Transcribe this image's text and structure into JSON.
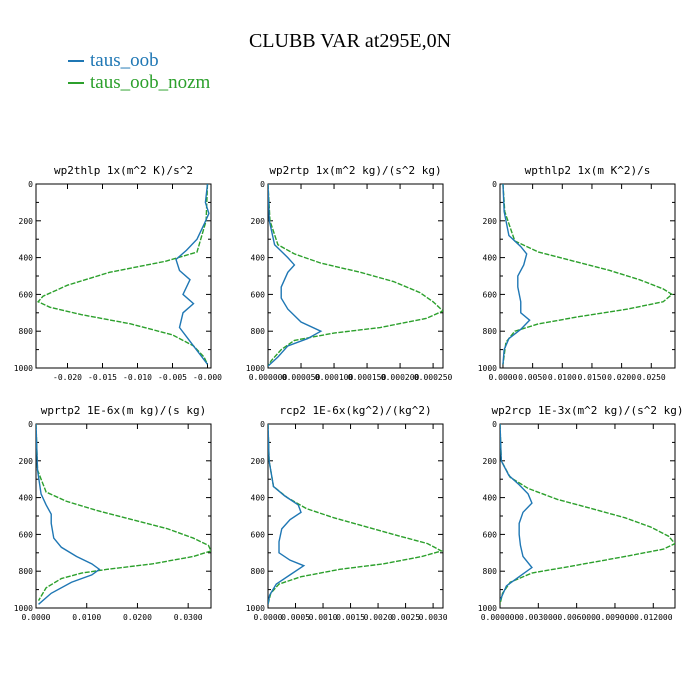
{
  "title": "CLUBB VAR at295E,0N",
  "legend": [
    {
      "label": "taus_oob",
      "color": "#1f77b4"
    },
    {
      "label": "taus_oob_nozm",
      "color": "#2ca02c"
    }
  ],
  "y_ticks": [
    "0",
    "200",
    "400",
    "600",
    "800",
    "1000"
  ],
  "chart_data": [
    {
      "type": "line",
      "title": "wp2thlp  1x(m^2 K)/s^2",
      "xlim": [
        -0.0245,
        0.0005
      ],
      "ylim": [
        1000,
        0
      ],
      "x_tick_values": [
        -0.02,
        -0.015,
        -0.01,
        -0.005,
        0.0
      ],
      "x_tick_labels": [
        "-0.020",
        "-0.015",
        "-0.010",
        "-0.005",
        "-0.000"
      ],
      "series": [
        {
          "name": "taus_oob",
          "color": "#1f77b4",
          "points": [
            [
              0,
              0
            ],
            [
              -0.0003,
              100
            ],
            [
              0.0002,
              160
            ],
            [
              -0.0005,
              220
            ],
            [
              -0.0015,
              300
            ],
            [
              -0.003,
              360
            ],
            [
              -0.0045,
              410
            ],
            [
              -0.004,
              470
            ],
            [
              -0.0025,
              520
            ],
            [
              -0.0035,
              600
            ],
            [
              -0.002,
              650
            ],
            [
              -0.0035,
              700
            ],
            [
              -0.004,
              780
            ],
            [
              -0.003,
              830
            ],
            [
              -0.002,
              880
            ],
            [
              -0.001,
              930
            ],
            [
              0,
              980
            ]
          ]
        },
        {
          "name": "taus_oob_nozm",
          "color": "#2ca02c",
          "points": [
            [
              0,
              0
            ],
            [
              -0.0002,
              200
            ],
            [
              -0.0015,
              370
            ],
            [
              -0.006,
              420
            ],
            [
              -0.014,
              480
            ],
            [
              -0.02,
              550
            ],
            [
              -0.0235,
              610
            ],
            [
              -0.0242,
              640
            ],
            [
              -0.0225,
              670
            ],
            [
              -0.018,
              710
            ],
            [
              -0.011,
              760
            ],
            [
              -0.005,
              820
            ],
            [
              -0.002,
              880
            ],
            [
              -0.0005,
              940
            ],
            [
              0,
              980
            ]
          ]
        }
      ]
    },
    {
      "type": "line",
      "title": "wp2rtp  1x(m^2 kg)/(s^2 kg)",
      "xlim": [
        0.0,
        0.000265
      ],
      "ylim": [
        1000,
        0
      ],
      "x_tick_values": [
        0.0,
        5e-05,
        0.0001,
        0.00015,
        0.0002,
        0.00025
      ],
      "x_tick_labels": [
        "0.000000",
        "0.000050",
        "0.000100",
        "0.000150",
        "0.000200",
        "0.000250"
      ],
      "series": [
        {
          "name": "taus_oob",
          "color": "#1f77b4",
          "points": [
            [
              0,
              0
            ],
            [
              2e-06,
              200
            ],
            [
              1e-05,
              330
            ],
            [
              3e-05,
              400
            ],
            [
              4e-05,
              440
            ],
            [
              3e-05,
              480
            ],
            [
              2e-05,
              560
            ],
            [
              2e-05,
              620
            ],
            [
              3e-05,
              680
            ],
            [
              5e-05,
              750
            ],
            [
              8e-05,
              800
            ],
            [
              6e-05,
              840
            ],
            [
              3e-05,
              880
            ],
            [
              1.5e-05,
              940
            ],
            [
              0,
              990
            ]
          ]
        },
        {
          "name": "taus_oob_nozm",
          "color": "#2ca02c",
          "points": [
            [
              0,
              0
            ],
            [
              3e-06,
              200
            ],
            [
              1.5e-05,
              330
            ],
            [
              4e-05,
              380
            ],
            [
              8e-05,
              430
            ],
            [
              0.00014,
              480
            ],
            [
              0.00019,
              530
            ],
            [
              0.00023,
              590
            ],
            [
              0.00025,
              640
            ],
            [
              0.000265,
              690
            ],
            [
              0.00024,
              730
            ],
            [
              0.00017,
              780
            ],
            [
              0.0001,
              810
            ],
            [
              4e-05,
              850
            ],
            [
              2e-05,
              900
            ],
            [
              5e-06,
              960
            ],
            [
              0,
              990
            ]
          ]
        }
      ]
    },
    {
      "type": "line",
      "title": "wpthlp2  1x(m K^2)/s",
      "xlim": [
        -0.0005,
        0.029
      ],
      "ylim": [
        1000,
        0
      ],
      "x_tick_values": [
        0.0,
        0.005,
        0.01,
        0.015,
        0.02,
        0.025
      ],
      "x_tick_labels": [
        "0.0000",
        "0.0050",
        "0.0100",
        "0.0150",
        "0.0200",
        "0.0250"
      ],
      "series": [
        {
          "name": "taus_oob",
          "color": "#1f77b4",
          "points": [
            [
              0,
              0
            ],
            [
              0.0002,
              150
            ],
            [
              0.001,
              280
            ],
            [
              0.003,
              340
            ],
            [
              0.004,
              380
            ],
            [
              0.0035,
              440
            ],
            [
              0.0025,
              500
            ],
            [
              0.0025,
              560
            ],
            [
              0.003,
              640
            ],
            [
              0.003,
              700
            ],
            [
              0.0045,
              740
            ],
            [
              0.003,
              790
            ],
            [
              0.001,
              840
            ],
            [
              0.0002,
              900
            ],
            [
              0,
              980
            ]
          ]
        },
        {
          "name": "taus_oob_nozm",
          "color": "#2ca02c",
          "points": [
            [
              0,
              0
            ],
            [
              0.0003,
              150
            ],
            [
              0.002,
              310
            ],
            [
              0.006,
              370
            ],
            [
              0.012,
              420
            ],
            [
              0.018,
              470
            ],
            [
              0.023,
              520
            ],
            [
              0.027,
              570
            ],
            [
              0.0285,
              600
            ],
            [
              0.027,
              640
            ],
            [
              0.021,
              680
            ],
            [
              0.013,
              720
            ],
            [
              0.006,
              760
            ],
            [
              0.002,
              800
            ],
            [
              0.0005,
              860
            ],
            [
              0,
              980
            ]
          ]
        }
      ]
    },
    {
      "type": "line",
      "title": "wprtp2  1E-6x(m kg)/(s kg)",
      "xlim": [
        0.0,
        0.0345
      ],
      "ylim": [
        1000,
        0
      ],
      "x_tick_values": [
        0.0,
        0.01,
        0.02,
        0.03
      ],
      "x_tick_labels": [
        "0.0000",
        "0.0100",
        "0.0200",
        "0.0300"
      ],
      "series": [
        {
          "name": "taus_oob",
          "color": "#1f77b4",
          "points": [
            [
              0,
              0
            ],
            [
              0.0003,
              250
            ],
            [
              0.001,
              380
            ],
            [
              0.002,
              440
            ],
            [
              0.003,
              490
            ],
            [
              0.003,
              540
            ],
            [
              0.0035,
              620
            ],
            [
              0.005,
              670
            ],
            [
              0.008,
              720
            ],
            [
              0.011,
              760
            ],
            [
              0.0125,
              790
            ],
            [
              0.011,
              820
            ],
            [
              0.007,
              860
            ],
            [
              0.003,
              920
            ],
            [
              0.0005,
              980
            ]
          ]
        },
        {
          "name": "taus_oob_nozm",
          "color": "#2ca02c",
          "points": [
            [
              0,
              0
            ],
            [
              0.0003,
              250
            ],
            [
              0.002,
              370
            ],
            [
              0.006,
              420
            ],
            [
              0.012,
              470
            ],
            [
              0.019,
              520
            ],
            [
              0.026,
              570
            ],
            [
              0.031,
              620
            ],
            [
              0.034,
              660
            ],
            [
              0.0345,
              690
            ],
            [
              0.031,
              720
            ],
            [
              0.023,
              760
            ],
            [
              0.014,
              790
            ],
            [
              0.009,
              810
            ],
            [
              0.005,
              840
            ],
            [
              0.002,
              890
            ],
            [
              0.0005,
              960
            ]
          ]
        }
      ]
    },
    {
      "type": "line",
      "title": "rcp2  1E-6x(kg^2)/(kg^2)",
      "xlim": [
        0.0,
        0.00318
      ],
      "ylim": [
        1000,
        0
      ],
      "x_tick_values": [
        0.0,
        0.0005,
        0.001,
        0.0015,
        0.002,
        0.0025,
        0.003
      ],
      "x_tick_labels": [
        "0.0000",
        "0.0005",
        "0.0010",
        "0.0015",
        "0.0020",
        "0.0025",
        "0.0030"
      ],
      "series": [
        {
          "name": "taus_oob",
          "color": "#1f77b4",
          "points": [
            [
              0,
              0
            ],
            [
              2e-05,
              200
            ],
            [
              0.0001,
              340
            ],
            [
              0.0003,
              390
            ],
            [
              0.00055,
              440
            ],
            [
              0.0006,
              480
            ],
            [
              0.0004,
              520
            ],
            [
              0.00025,
              570
            ],
            [
              0.0002,
              640
            ],
            [
              0.0002,
              700
            ],
            [
              0.0004,
              740
            ],
            [
              0.00065,
              770
            ],
            [
              0.0004,
              820
            ],
            [
              0.00015,
              870
            ],
            [
              3e-05,
              930
            ],
            [
              0,
              980
            ]
          ]
        },
        {
          "name": "taus_oob_nozm",
          "color": "#2ca02c",
          "points": [
            [
              0,
              0
            ],
            [
              2e-05,
              200
            ],
            [
              0.0001,
              340
            ],
            [
              0.00035,
              400
            ],
            [
              0.0007,
              460
            ],
            [
              0.0012,
              510
            ],
            [
              0.0018,
              560
            ],
            [
              0.0024,
              610
            ],
            [
              0.0029,
              650
            ],
            [
              0.00315,
              690
            ],
            [
              0.0028,
              720
            ],
            [
              0.0021,
              760
            ],
            [
              0.0013,
              790
            ],
            [
              0.0006,
              830
            ],
            [
              0.0002,
              870
            ],
            [
              5e-05,
              920
            ],
            [
              0,
              980
            ]
          ]
        }
      ]
    },
    {
      "type": "line",
      "title": "wp2rcp  1E-3x(m^2 kg)/(s^2 kg)",
      "xlim": [
        0.0,
        0.0137
      ],
      "ylim": [
        1000,
        0
      ],
      "x_tick_values": [
        0.0,
        0.003,
        0.006,
        0.009,
        0.012
      ],
      "x_tick_labels": [
        "0.000000",
        "0.003000",
        "0.006000",
        "0.009000",
        "0.012000"
      ],
      "series": [
        {
          "name": "taus_oob",
          "color": "#1f77b4",
          "points": [
            [
              0,
              0
            ],
            [
              0.0001,
              200
            ],
            [
              0.0007,
              280
            ],
            [
              0.0015,
              330
            ],
            [
              0.0022,
              380
            ],
            [
              0.0025,
              430
            ],
            [
              0.0018,
              480
            ],
            [
              0.0015,
              540
            ],
            [
              0.0015,
              600
            ],
            [
              0.0016,
              660
            ],
            [
              0.0018,
              720
            ],
            [
              0.0025,
              780
            ],
            [
              0.0015,
              830
            ],
            [
              0.0005,
              880
            ],
            [
              0,
              960
            ]
          ]
        },
        {
          "name": "taus_oob_nozm",
          "color": "#2ca02c",
          "points": [
            [
              0,
              0
            ],
            [
              0.0001,
              200
            ],
            [
              0.0008,
              290
            ],
            [
              0.0022,
              350
            ],
            [
              0.0045,
              410
            ],
            [
              0.0072,
              460
            ],
            [
              0.0098,
              510
            ],
            [
              0.0118,
              560
            ],
            [
              0.0132,
              610
            ],
            [
              0.0137,
              650
            ],
            [
              0.0128,
              680
            ],
            [
              0.0098,
              720
            ],
            [
              0.0058,
              770
            ],
            [
              0.0025,
              810
            ],
            [
              0.0008,
              860
            ],
            [
              0.0002,
              920
            ],
            [
              0,
              980
            ]
          ]
        }
      ]
    }
  ]
}
